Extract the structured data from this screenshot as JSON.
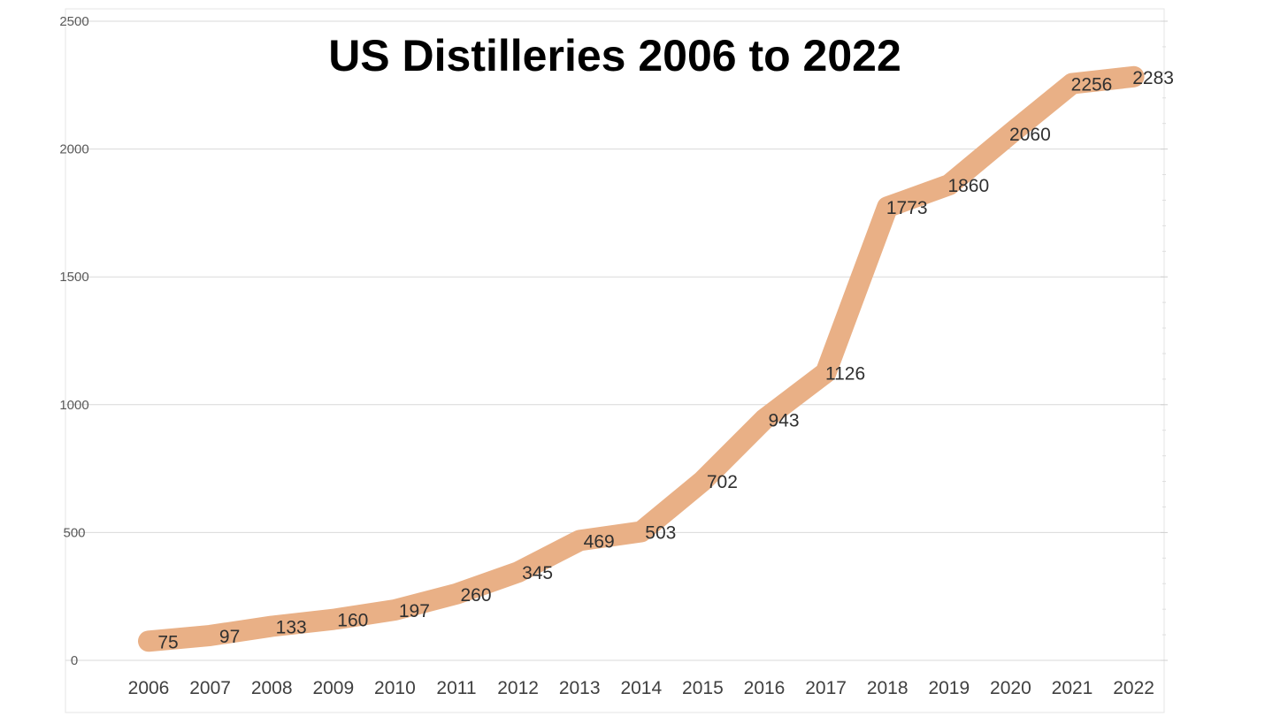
{
  "chart_data": {
    "type": "line",
    "title": "US Distilleries 2006 to 2022",
    "xlabel": "",
    "ylabel": "",
    "categories": [
      "2006",
      "2007",
      "2008",
      "2009",
      "2010",
      "2011",
      "2012",
      "2013",
      "2014",
      "2015",
      "2016",
      "2017",
      "2018",
      "2019",
      "2020",
      "2021",
      "2022"
    ],
    "series": [
      {
        "values": [
          75,
          97,
          133,
          160,
          197,
          260,
          345,
          469,
          503,
          702,
          943,
          1126,
          1773,
          1860,
          2060,
          2256,
          2283
        ],
        "color": "#E9B086"
      }
    ],
    "data_labels": [
      "75",
      "97",
      "133",
      "160",
      "197",
      "260",
      "345",
      "469",
      "503",
      "702",
      "943",
      "1126",
      "1773",
      "1860",
      "2060",
      "2256",
      "2283"
    ],
    "ylim": [
      0,
      2500
    ],
    "yticks": [
      "0",
      "500",
      "1000",
      "1500",
      "2000",
      "2500"
    ],
    "grid": true,
    "legend": "none",
    "gridline_color": "#D9D9D9"
  }
}
